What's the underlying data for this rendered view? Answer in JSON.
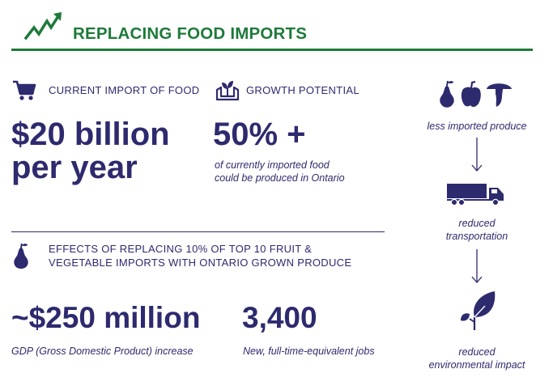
{
  "header": {
    "title": "REPLACING FOOD IMPORTS",
    "icon": "trending-up-icon",
    "color": "#1e7a3a"
  },
  "import_section": {
    "label": "CURRENT IMPORT OF FOOD",
    "value_line1": "$20 billion",
    "value_line2": "per year",
    "icon": "shopping-cart-icon"
  },
  "growth_section": {
    "label": "GROWTH POTENTIAL",
    "value": "50% +",
    "note_line1": "of currently imported food",
    "note_line2": "could be produced in Ontario",
    "icon": "seedling-hands-icon"
  },
  "effects_section": {
    "label_line1": "EFFECTS OF REPLACING 10% OF TOP 10 FRUIT &",
    "label_line2": "VEGETABLE IMPORTS WITH ONTARIO GROWN PRODUCE",
    "icon": "pear-icon",
    "gdp_value": "~$250 million",
    "gdp_note": "GDP (Gross Domestic Product) increase",
    "jobs_value": "3,400",
    "jobs_note": "New, full-time-equivalent jobs"
  },
  "flow": {
    "step1": "less imported produce",
    "step2_line1": "reduced",
    "step2_line2": "transportation",
    "step3_line1": "reduced",
    "step3_line2": "environmental impact",
    "icons": [
      "pear-icon",
      "pepper-icon",
      "mushroom-icon",
      "truck-icon",
      "leaf-icon"
    ]
  },
  "colors": {
    "primary": "#2d2a6e",
    "green": "#1e7a3a"
  }
}
